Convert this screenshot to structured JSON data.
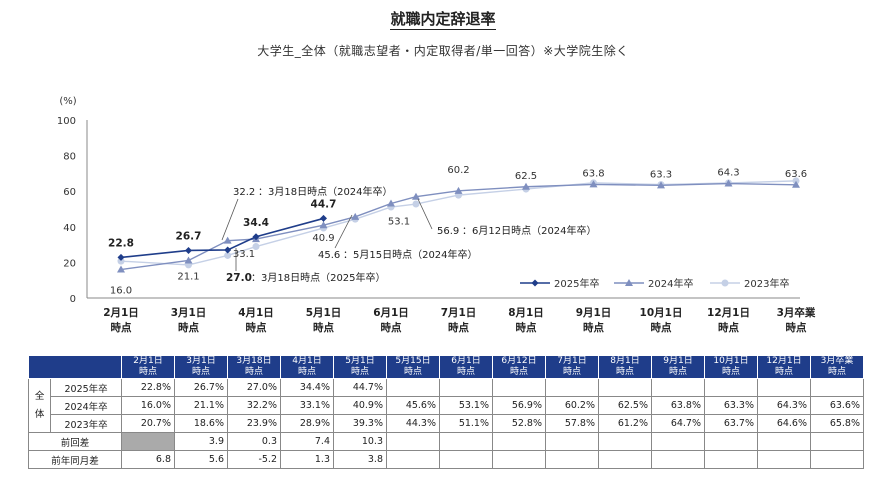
{
  "title": "就職内定辞退率",
  "subtitle": "大学生_全体（就職志望者・内定取得者/単一回答）※大学院生除く",
  "chart_data": {
    "type": "line",
    "yunit": "(%)",
    "ylim": [
      0,
      100
    ],
    "yticks": [
      "0",
      "20",
      "40",
      "60",
      "80",
      "100"
    ],
    "categories": [
      "2月1日\n時点",
      "3月1日\n時点",
      "4月1日\n時点",
      "5月1日\n時点",
      "6月1日\n時点",
      "7月1日\n時点",
      "8月1日\n時点",
      "9月1日\n時点",
      "10月1日\n時点",
      "12月1日\n時点",
      "3月卒業\n時点"
    ],
    "series": [
      {
        "name": "2025年卒",
        "color": "#1f3d8a",
        "points": [
          [
            0,
            22.8
          ],
          [
            1,
            26.7
          ],
          [
            1.58,
            27.0
          ],
          [
            2,
            34.4
          ],
          [
            3,
            44.7
          ]
        ]
      },
      {
        "name": "2024年卒",
        "color": "#7f8fbf",
        "points": [
          [
            0,
            16.0
          ],
          [
            1,
            21.1
          ],
          [
            1.58,
            32.2
          ],
          [
            2,
            33.1
          ],
          [
            3,
            40.9
          ],
          [
            3.47,
            45.6
          ],
          [
            4,
            53.1
          ],
          [
            4.37,
            56.9
          ],
          [
            5,
            60.2
          ],
          [
            6,
            62.5
          ],
          [
            7,
            63.8
          ],
          [
            8,
            63.3
          ],
          [
            9,
            64.3
          ],
          [
            10,
            63.6
          ]
        ]
      },
      {
        "name": "2023年卒",
        "color": "#c5d0e6",
        "points": [
          [
            0,
            20.7
          ],
          [
            1,
            18.6
          ],
          [
            1.58,
            23.9
          ],
          [
            2,
            28.9
          ],
          [
            3,
            39.3
          ],
          [
            3.47,
            44.3
          ],
          [
            4,
            51.1
          ],
          [
            4.37,
            52.8
          ],
          [
            5,
            57.8
          ],
          [
            6,
            61.2
          ],
          [
            7,
            64.7
          ],
          [
            8,
            63.7
          ],
          [
            9,
            64.6
          ],
          [
            10,
            65.8
          ]
        ]
      }
    ],
    "data_labels_2025": [
      {
        "i": 0,
        "v": 22.8,
        "text": "22.8"
      },
      {
        "i": 1,
        "v": 26.7,
        "text": "26.7"
      },
      {
        "i": 2,
        "v": 34.4,
        "text": "34.4"
      },
      {
        "i": 3,
        "v": 44.7,
        "text": "44.7"
      }
    ],
    "data_labels_2024": [
      {
        "i": 0,
        "v": 16.0,
        "text": "16.0"
      },
      {
        "i": 1,
        "v": 21.1,
        "text": "21.1"
      },
      {
        "i": 2,
        "v": 33.1,
        "text": "33.1"
      },
      {
        "i": 3,
        "v": 40.9,
        "text": "40.9"
      },
      {
        "i": 4,
        "v": 53.1,
        "text": "53.1"
      },
      {
        "i": 5,
        "v": 60.2,
        "text": "60.2"
      },
      {
        "i": 6,
        "v": 62.5,
        "text": "62.5"
      },
      {
        "i": 7,
        "v": 63.8,
        "text": "63.8"
      },
      {
        "i": 8,
        "v": 63.3,
        "text": "63.3"
      },
      {
        "i": 9,
        "v": 64.3,
        "text": "64.3"
      },
      {
        "i": 10,
        "v": 63.6,
        "text": "63.6"
      }
    ],
    "annotations": [
      {
        "val": "32.2",
        "rest": "：3月18日時点（2024年卒）"
      },
      {
        "val": "27.0",
        "rest": "：3月18日時点（2025年卒）"
      },
      {
        "val": "45.6",
        "rest": "：5月15日時点（2024年卒）"
      },
      {
        "val": "56.9",
        "rest": "：6月12日時点（2024年卒）"
      }
    ],
    "legend": [
      "2025年卒",
      "2024年卒",
      "2023年卒"
    ]
  },
  "table": {
    "headers": [
      "2月1日\n時点",
      "3月1日\n時点",
      "3月18日\n時点",
      "4月1日\n時点",
      "5月1日\n時点",
      "5月15日\n時点",
      "6月1日\n時点",
      "6月12日\n時点",
      "7月1日\n時点",
      "8月1日\n時点",
      "9月1日\n時点",
      "10月1日\n時点",
      "12月1日\n時点",
      "3月卒業\n時点"
    ],
    "side": "全\n体",
    "rows": [
      {
        "label": "2025年卒",
        "cells": [
          "22.8%",
          "26.7%",
          "27.0%",
          "34.4%",
          "44.7%",
          "",
          "",
          "",
          "",
          "",
          "",
          "",
          "",
          ""
        ]
      },
      {
        "label": "2024年卒",
        "cells": [
          "16.0%",
          "21.1%",
          "32.2%",
          "33.1%",
          "40.9%",
          "45.6%",
          "53.1%",
          "56.9%",
          "60.2%",
          "62.5%",
          "63.8%",
          "63.3%",
          "64.3%",
          "63.6%"
        ]
      },
      {
        "label": "2023年卒",
        "cells": [
          "20.7%",
          "18.6%",
          "23.9%",
          "28.9%",
          "39.3%",
          "44.3%",
          "51.1%",
          "52.8%",
          "57.8%",
          "61.2%",
          "64.7%",
          "63.7%",
          "64.6%",
          "65.8%"
        ]
      },
      {
        "label": "前回差",
        "cells": [
          "",
          "3.9",
          "0.3",
          "7.4",
          "10.3",
          "",
          "",
          "",
          "",
          "",
          "",
          "",
          "",
          ""
        ]
      },
      {
        "label": "前年同月差",
        "cells": [
          "6.8",
          "5.6",
          "-5.2",
          "1.3",
          "3.8",
          "",
          "",
          "",
          "",
          "",
          "",
          "",
          "",
          ""
        ]
      }
    ]
  }
}
